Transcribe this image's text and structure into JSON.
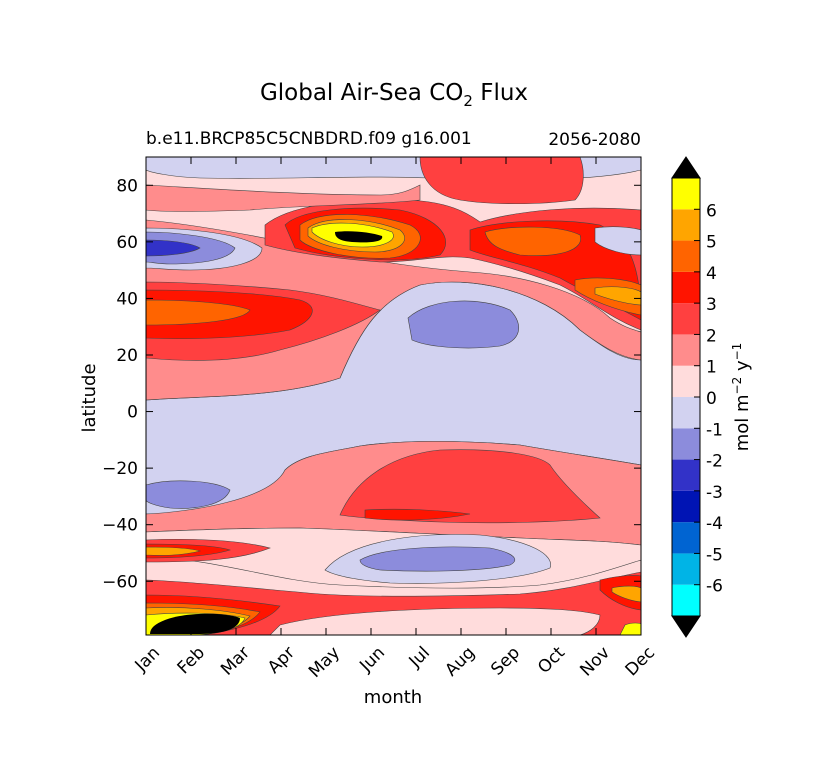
{
  "chart_data": {
    "type": "heatmap",
    "title": "Global Air-Sea CO",
    "title_subscript": "2",
    "title_suffix": " Flux",
    "subtitle_left": "b.e11.BRCP85C5CNBDRD.f09 g16.001",
    "subtitle_right": "2056-2080",
    "xlabel": "month",
    "ylabel": "latitude",
    "x_ticks": [
      "Jan",
      "Feb",
      "Mar",
      "Apr",
      "May",
      "Jun",
      "Jul",
      "Aug",
      "Sep",
      "Oct",
      "Nov",
      "Dec"
    ],
    "ylim": [
      -79,
      90
    ],
    "y_ticks": [
      80,
      60,
      40,
      20,
      0,
      -20,
      -40,
      -60
    ],
    "colorbar": {
      "label_main": "mol m",
      "label_sup1": "−2",
      "label_mid": " y",
      "label_sup2": "−1",
      "levels": [
        -6,
        -5,
        -4,
        -3,
        -2,
        -1,
        0,
        1,
        2,
        3,
        4,
        5,
        6
      ],
      "tick_labels": [
        "-6",
        "-5",
        "-4",
        "-3",
        "-2",
        "-1",
        "0",
        "1",
        "2",
        "3",
        "4",
        "5",
        "6"
      ],
      "colors": [
        "#00ffff",
        "#00b4e6",
        "#0064d2",
        "#0014b4",
        "#3232c8",
        "#8c8cdc",
        "#d2d2f0",
        "#ffdcdc",
        "#ff8c8c",
        "#ff4040",
        "#ff1400",
        "#ff6400",
        "#ffa500",
        "#ffff00"
      ],
      "under_color": "#000000",
      "over_color": "#000000"
    },
    "grid": false,
    "legend": "colorbar-right"
  }
}
